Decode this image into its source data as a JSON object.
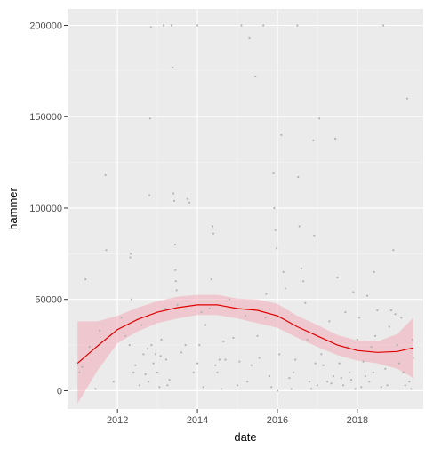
{
  "chart_data": {
    "type": "scatter",
    "xlabel": "date",
    "ylabel": "hammer",
    "xlim": [
      2010.75,
      2019.65
    ],
    "ylim": [
      -10000,
      209000
    ],
    "x_ticks": [
      {
        "value": 2012,
        "label": "2012"
      },
      {
        "value": 2014,
        "label": "2014"
      },
      {
        "value": 2016,
        "label": "2016"
      },
      {
        "value": 2018,
        "label": "2018"
      }
    ],
    "y_ticks": [
      {
        "value": 0,
        "label": "0"
      },
      {
        "value": 50000,
        "label": "50000"
      },
      {
        "value": 100000,
        "label": "100000"
      },
      {
        "value": 150000,
        "label": "150000"
      },
      {
        "value": 200000,
        "label": "200000"
      }
    ],
    "grid": true,
    "legend": "none",
    "colors": {
      "panel": "#ebebeb",
      "grid_major": "#ffffff",
      "points": "#b3b3b3",
      "smooth_line": "#e00000",
      "smooth_ribbon": "#f4a6b4"
    },
    "points": [
      [
        2011.05,
        10000
      ],
      [
        2011.12,
        13000
      ],
      [
        2011.2,
        61000
      ],
      [
        2011.3,
        24000
      ],
      [
        2011.45,
        1000
      ],
      [
        2011.55,
        33000
      ],
      [
        2011.7,
        118000
      ],
      [
        2011.72,
        77000
      ],
      [
        2011.9,
        5000
      ],
      [
        2012.1,
        40000
      ],
      [
        2012.2,
        30000
      ],
      [
        2012.3,
        25000
      ],
      [
        2012.32,
        73000
      ],
      [
        2012.33,
        75000
      ],
      [
        2012.35,
        50000
      ],
      [
        2012.4,
        10000
      ],
      [
        2012.45,
        14000
      ],
      [
        2012.55,
        3000
      ],
      [
        2012.6,
        36000
      ],
      [
        2012.65,
        20000
      ],
      [
        2012.7,
        9000
      ],
      [
        2012.75,
        23000
      ],
      [
        2012.78,
        5000
      ],
      [
        2012.8,
        107000
      ],
      [
        2012.82,
        149000
      ],
      [
        2012.84,
        199000
      ],
      [
        2012.85,
        25000
      ],
      [
        2012.9,
        15000
      ],
      [
        2012.95,
        20000
      ],
      [
        2013.0,
        10000
      ],
      [
        2013.05,
        2000
      ],
      [
        2013.08,
        19000
      ],
      [
        2013.1,
        28000
      ],
      [
        2013.15,
        200000
      ],
      [
        2013.2,
        45000
      ],
      [
        2013.22,
        17000
      ],
      [
        2013.25,
        3000
      ],
      [
        2013.3,
        6000
      ],
      [
        2013.35,
        200000
      ],
      [
        2013.38,
        177000
      ],
      [
        2013.4,
        108000
      ],
      [
        2013.42,
        104000
      ],
      [
        2013.44,
        80000
      ],
      [
        2013.45,
        66000
      ],
      [
        2013.46,
        60000
      ],
      [
        2013.48,
        55000
      ],
      [
        2013.5,
        47000
      ],
      [
        2013.6,
        21000
      ],
      [
        2013.7,
        25000
      ],
      [
        2013.75,
        105000
      ],
      [
        2013.8,
        103000
      ],
      [
        2013.9,
        10000
      ],
      [
        2014.0,
        15000
      ],
      [
        2014.0,
        200000
      ],
      [
        2014.05,
        25000
      ],
      [
        2014.1,
        43000
      ],
      [
        2014.15,
        2000
      ],
      [
        2014.2,
        36000
      ],
      [
        2014.3,
        45000
      ],
      [
        2014.35,
        61000
      ],
      [
        2014.38,
        90000
      ],
      [
        2014.4,
        86000
      ],
      [
        2014.45,
        14000
      ],
      [
        2014.5,
        10000
      ],
      [
        2014.55,
        17000
      ],
      [
        2014.6,
        1000
      ],
      [
        2014.65,
        27000
      ],
      [
        2014.7,
        17000
      ],
      [
        2014.8,
        50000
      ],
      [
        2014.9,
        29000
      ],
      [
        2015.0,
        3000
      ],
      [
        2015.05,
        16000
      ],
      [
        2015.1,
        200000
      ],
      [
        2015.2,
        41000
      ],
      [
        2015.25,
        5000
      ],
      [
        2015.3,
        193000
      ],
      [
        2015.35,
        14000
      ],
      [
        2015.45,
        172000
      ],
      [
        2015.5,
        30000
      ],
      [
        2015.55,
        18000
      ],
      [
        2015.65,
        200000
      ],
      [
        2015.7,
        40000
      ],
      [
        2015.72,
        53000
      ],
      [
        2015.8,
        8000
      ],
      [
        2015.85,
        2000
      ],
      [
        2015.9,
        119000
      ],
      [
        2015.92,
        100000
      ],
      [
        2015.95,
        88000
      ],
      [
        2015.98,
        78000
      ],
      [
        2016.0,
        0
      ],
      [
        2016.05,
        20000
      ],
      [
        2016.1,
        140000
      ],
      [
        2016.15,
        65000
      ],
      [
        2016.2,
        56000
      ],
      [
        2016.3,
        7000
      ],
      [
        2016.35,
        1000
      ],
      [
        2016.4,
        10000
      ],
      [
        2016.45,
        17000
      ],
      [
        2016.5,
        200000
      ],
      [
        2016.52,
        117000
      ],
      [
        2016.55,
        90000
      ],
      [
        2016.6,
        67000
      ],
      [
        2016.65,
        60000
      ],
      [
        2016.7,
        48000
      ],
      [
        2016.75,
        28000
      ],
      [
        2016.8,
        5000
      ],
      [
        2016.85,
        1000
      ],
      [
        2016.9,
        137000
      ],
      [
        2016.92,
        85000
      ],
      [
        2016.95,
        15000
      ],
      [
        2017.0,
        3000
      ],
      [
        2017.05,
        149000
      ],
      [
        2017.1,
        20000
      ],
      [
        2017.15,
        14000
      ],
      [
        2017.25,
        5000
      ],
      [
        2017.3,
        38000
      ],
      [
        2017.35,
        4000
      ],
      [
        2017.4,
        8000
      ],
      [
        2017.45,
        138000
      ],
      [
        2017.5,
        62000
      ],
      [
        2017.55,
        15000
      ],
      [
        2017.6,
        7000
      ],
      [
        2017.65,
        3000
      ],
      [
        2017.7,
        43000
      ],
      [
        2017.75,
        24000
      ],
      [
        2017.8,
        10000
      ],
      [
        2017.85,
        6000
      ],
      [
        2017.9,
        54000
      ],
      [
        2017.95,
        1000
      ],
      [
        2018.0,
        28000
      ],
      [
        2018.05,
        40000
      ],
      [
        2018.1,
        2000
      ],
      [
        2018.15,
        16000
      ],
      [
        2018.2,
        8000
      ],
      [
        2018.25,
        52000
      ],
      [
        2018.3,
        5000
      ],
      [
        2018.35,
        24000
      ],
      [
        2018.4,
        10000
      ],
      [
        2018.42,
        65000
      ],
      [
        2018.45,
        30000
      ],
      [
        2018.5,
        44000
      ],
      [
        2018.6,
        2000
      ],
      [
        2018.65,
        200000
      ],
      [
        2018.7,
        12000
      ],
      [
        2018.75,
        3000
      ],
      [
        2018.8,
        35000
      ],
      [
        2018.85,
        44000
      ],
      [
        2018.9,
        77000
      ],
      [
        2018.95,
        42000
      ],
      [
        2019.0,
        25000
      ],
      [
        2019.05,
        15000
      ],
      [
        2019.1,
        40000
      ],
      [
        2019.15,
        10000
      ],
      [
        2019.2,
        3000
      ],
      [
        2019.25,
        160000
      ],
      [
        2019.3,
        5000
      ],
      [
        2019.35,
        1000
      ],
      [
        2019.38,
        28000
      ],
      [
        2019.4,
        18000
      ]
    ],
    "smooth": {
      "x": [
        2011.0,
        2011.5,
        2012.0,
        2012.5,
        2013.0,
        2013.5,
        2014.0,
        2014.5,
        2015.0,
        2015.5,
        2016.0,
        2016.5,
        2017.0,
        2017.5,
        2018.0,
        2018.5,
        2019.0,
        2019.4
      ],
      "y": [
        15000,
        24500,
        33500,
        39000,
        43000,
        45500,
        47000,
        47000,
        45000,
        44000,
        41000,
        35000,
        30000,
        25000,
        22000,
        21000,
        21500,
        23500
      ],
      "lower": [
        -7000,
        11000,
        26000,
        32500,
        37000,
        39500,
        41500,
        41500,
        39500,
        37000,
        34500,
        29000,
        24000,
        19500,
        16500,
        15000,
        12000,
        7000
      ],
      "upper": [
        38000,
        38000,
        41000,
        45500,
        49000,
        51500,
        52500,
        52500,
        50500,
        50000,
        47500,
        41000,
        36000,
        30500,
        27500,
        27000,
        31000,
        40000
      ]
    }
  }
}
